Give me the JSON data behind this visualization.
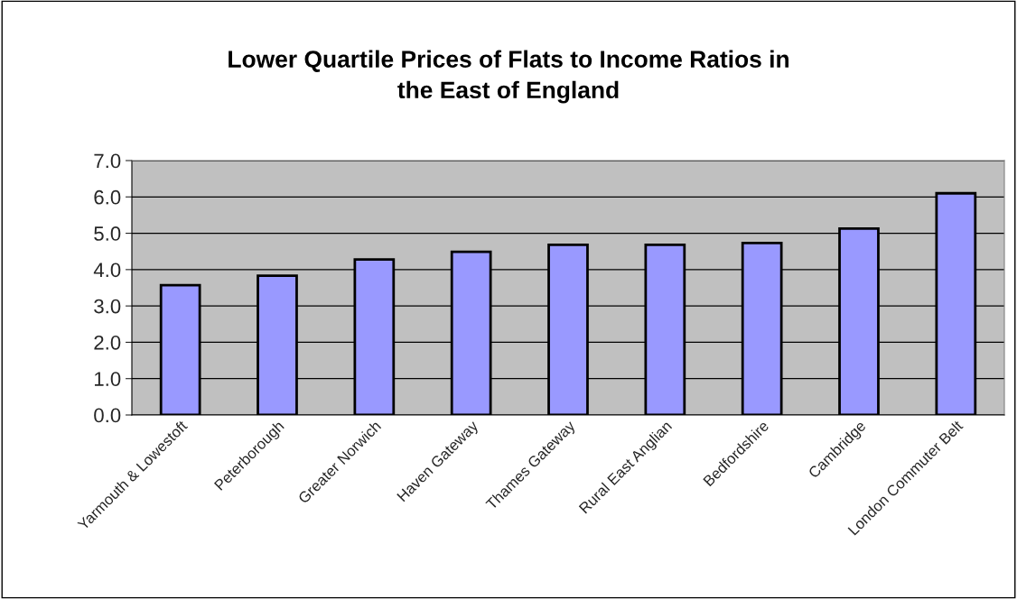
{
  "chart_data": {
    "type": "bar",
    "title": "Lower Quartile Prices of Flats to Income Ratios in\nthe East of England",
    "categories": [
      "Yarmouth & Lowestoft",
      "Peterborough",
      "Greater Norwich",
      "Haven Gateway",
      "Thames Gateway",
      "Rural East Anglian",
      "Bedfordshire",
      "Cambridge",
      "London Commuter Belt"
    ],
    "values": [
      3.57,
      3.83,
      4.28,
      4.49,
      4.68,
      4.68,
      4.73,
      5.13,
      6.1
    ],
    "color": "#9999ff",
    "ylim": [
      0,
      7
    ],
    "yticks": [
      {
        "value": 0,
        "label": "0.0"
      },
      {
        "value": 1,
        "label": "1.0"
      },
      {
        "value": 2,
        "label": "2.0"
      },
      {
        "value": 3,
        "label": "3.0"
      },
      {
        "value": 4,
        "label": "4.0"
      },
      {
        "value": 5,
        "label": "5.0"
      },
      {
        "value": 6,
        "label": "6.0"
      },
      {
        "value": 7,
        "label": "7.0"
      }
    ],
    "grid": "y"
  }
}
